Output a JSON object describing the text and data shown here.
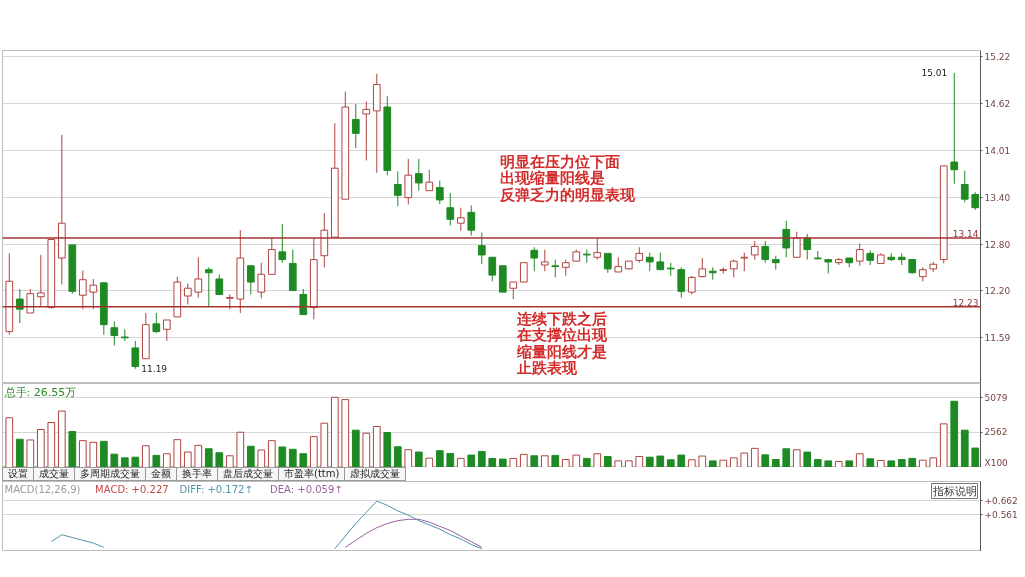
{
  "chart_data": [
    {
      "type": "candlestick",
      "categories": [
        null,
        null,
        null,
        null,
        null,
        null,
        null,
        null,
        null,
        null,
        null,
        null,
        null,
        null,
        null,
        null,
        null,
        null,
        null,
        null,
        null,
        null,
        null,
        null,
        null,
        null,
        null,
        null,
        null,
        null,
        null,
        null,
        null,
        null,
        null,
        null,
        null,
        null,
        null,
        null,
        null,
        null,
        null,
        null,
        null,
        null,
        null,
        null,
        null,
        null,
        null,
        null,
        null,
        null,
        null,
        null,
        null,
        null,
        null,
        null,
        null,
        null,
        null,
        null,
        null,
        null,
        null,
        null,
        null,
        null,
        null,
        null,
        null,
        null,
        null,
        null,
        null,
        null,
        null,
        null,
        null,
        null,
        null,
        null,
        null,
        null,
        null,
        null,
        null,
        null,
        null,
        null,
        null
      ],
      "ohlc": [
        [
          11.67,
          12.68,
          11.63,
          12.32
        ],
        [
          12.09,
          12.22,
          11.78,
          11.96
        ],
        [
          11.91,
          12.22,
          11.91,
          12.16
        ],
        [
          12.12,
          12.66,
          12.0,
          12.17
        ],
        [
          11.98,
          12.86,
          11.97,
          12.86
        ],
        [
          12.62,
          14.21,
          12.28,
          13.07
        ],
        [
          12.79,
          12.79,
          12.16,
          12.19
        ],
        [
          12.14,
          12.46,
          11.96,
          12.34
        ],
        [
          12.18,
          12.35,
          11.96,
          12.27
        ],
        [
          12.3,
          12.3,
          11.63,
          11.76
        ],
        [
          11.72,
          11.8,
          11.49,
          11.62
        ],
        [
          11.6,
          11.7,
          11.55,
          11.59
        ],
        [
          11.46,
          11.55,
          11.19,
          11.22
        ],
        [
          11.32,
          11.91,
          11.32,
          11.76
        ],
        [
          11.77,
          11.91,
          11.65,
          11.67
        ],
        [
          11.7,
          11.82,
          11.55,
          11.82
        ],
        [
          11.86,
          12.38,
          11.86,
          12.31
        ],
        [
          12.13,
          12.29,
          12.02,
          12.23
        ],
        [
          12.18,
          12.63,
          12.11,
          12.35
        ],
        [
          12.47,
          12.5,
          12.0,
          12.43
        ],
        [
          12.35,
          12.41,
          12.14,
          12.15
        ],
        [
          12.1,
          12.15,
          11.96,
          12.11
        ],
        [
          12.09,
          12.98,
          11.91,
          12.62
        ],
        [
          12.52,
          12.52,
          12.15,
          12.31
        ],
        [
          12.18,
          12.56,
          12.1,
          12.41
        ],
        [
          12.41,
          12.88,
          12.41,
          12.73
        ],
        [
          12.7,
          13.06,
          12.56,
          12.6
        ],
        [
          12.55,
          12.73,
          12.2,
          12.2
        ],
        [
          12.15,
          12.22,
          11.89,
          11.89
        ],
        [
          11.98,
          12.88,
          11.83,
          12.6
        ],
        [
          12.65,
          13.2,
          12.5,
          12.98
        ],
        [
          12.89,
          14.36,
          12.89,
          13.78
        ],
        [
          13.38,
          14.77,
          13.38,
          14.57
        ],
        [
          14.41,
          14.61,
          14.04,
          14.23
        ],
        [
          14.48,
          14.64,
          13.88,
          14.54
        ],
        [
          14.52,
          15.0,
          13.72,
          14.86
        ],
        [
          14.57,
          14.71,
          13.69,
          13.75
        ],
        [
          13.57,
          13.74,
          13.29,
          13.43
        ],
        [
          13.4,
          13.9,
          13.31,
          13.69
        ],
        [
          13.71,
          13.9,
          13.49,
          13.59
        ],
        [
          13.49,
          13.76,
          13.49,
          13.6
        ],
        [
          13.53,
          13.62,
          13.32,
          13.37
        ],
        [
          13.27,
          13.46,
          13.04,
          13.12
        ],
        [
          13.07,
          13.27,
          12.97,
          13.14
        ],
        [
          13.21,
          13.3,
          12.91,
          12.98
        ],
        [
          12.78,
          12.95,
          12.54,
          12.66
        ],
        [
          12.63,
          12.63,
          12.32,
          12.4
        ],
        [
          12.52,
          12.52,
          12.18,
          12.18
        ],
        [
          12.23,
          12.31,
          12.09,
          12.31
        ],
        [
          12.31,
          12.56,
          12.31,
          12.56
        ],
        [
          12.72,
          12.76,
          12.45,
          12.62
        ],
        [
          12.53,
          12.73,
          12.45,
          12.57
        ],
        [
          12.52,
          12.6,
          12.37,
          12.51
        ],
        [
          12.5,
          12.6,
          12.39,
          12.56
        ],
        [
          12.58,
          12.73,
          12.58,
          12.7
        ],
        [
          12.67,
          12.73,
          12.56,
          12.66
        ],
        [
          12.63,
          12.88,
          12.6,
          12.69
        ],
        [
          12.68,
          12.68,
          12.43,
          12.48
        ],
        [
          12.44,
          12.63,
          12.44,
          12.51
        ],
        [
          12.48,
          12.58,
          12.47,
          12.58
        ],
        [
          12.59,
          12.76,
          12.56,
          12.68
        ],
        [
          12.63,
          12.69,
          12.45,
          12.57
        ],
        [
          12.57,
          12.69,
          12.47,
          12.47
        ],
        [
          12.49,
          12.56,
          12.39,
          12.48
        ],
        [
          12.47,
          12.5,
          12.11,
          12.19
        ],
        [
          12.18,
          12.39,
          12.15,
          12.37
        ],
        [
          12.38,
          12.62,
          12.37,
          12.48
        ],
        [
          12.45,
          12.5,
          12.34,
          12.43
        ],
        [
          12.46,
          12.5,
          12.42,
          12.47
        ],
        [
          12.48,
          12.6,
          12.37,
          12.58
        ],
        [
          12.62,
          12.69,
          12.45,
          12.63
        ],
        [
          12.66,
          12.84,
          12.6,
          12.77
        ],
        [
          12.77,
          12.84,
          12.56,
          12.6
        ],
        [
          12.6,
          12.65,
          12.47,
          12.56
        ],
        [
          12.99,
          13.1,
          12.63,
          12.75
        ],
        [
          12.63,
          12.96,
          12.63,
          12.88
        ],
        [
          12.88,
          12.93,
          12.6,
          12.73
        ],
        [
          12.62,
          12.71,
          12.6,
          12.61
        ],
        [
          12.6,
          12.6,
          12.42,
          12.57
        ],
        [
          12.56,
          12.62,
          12.53,
          12.6
        ],
        [
          12.62,
          12.62,
          12.5,
          12.56
        ],
        [
          12.58,
          12.81,
          12.52,
          12.73
        ],
        [
          12.68,
          12.72,
          12.53,
          12.59
        ],
        [
          12.55,
          12.68,
          12.55,
          12.66
        ],
        [
          12.63,
          12.68,
          12.58,
          12.6
        ],
        [
          12.63,
          12.68,
          12.53,
          12.6
        ],
        [
          12.6,
          12.6,
          12.42,
          12.43
        ],
        [
          12.38,
          12.5,
          12.32,
          12.47
        ],
        [
          12.48,
          12.57,
          12.44,
          12.54
        ],
        [
          12.6,
          13.81,
          12.55,
          13.81
        ],
        [
          13.86,
          15.01,
          13.58,
          13.76
        ],
        [
          13.57,
          13.75,
          13.34,
          13.38
        ],
        [
          13.44,
          13.47,
          13.24,
          13.27
        ]
      ],
      "colors": [
        "#b0443f",
        "#1f8a24",
        "#b0443f",
        "#b0443f",
        "#b0443f",
        "#b0443f",
        "#1f8a24",
        "#b0443f",
        "#b0443f",
        "#1f8a24",
        "#1f8a24",
        "#1f8a24",
        "#1f8a24",
        "#b0443f",
        "#1f8a24",
        "#b0443f",
        "#b0443f",
        "#b0443f",
        "#b0443f",
        "#1f8a24",
        "#1f8a24",
        "#b0443f",
        "#b0443f",
        "#1f8a24",
        "#b0443f",
        "#b0443f",
        "#1f8a24",
        "#1f8a24",
        "#1f8a24",
        "#b0443f",
        "#b0443f",
        "#b0443f",
        "#b0443f",
        "#1f8a24",
        "#b0443f",
        "#b0443f",
        "#1f8a24",
        "#1f8a24",
        "#b0443f",
        "#1f8a24",
        "#b0443f",
        "#1f8a24",
        "#1f8a24",
        "#b0443f",
        "#1f8a24",
        "#1f8a24",
        "#1f8a24",
        "#1f8a24",
        "#b0443f",
        "#b0443f",
        "#1f8a24",
        "#b0443f",
        "#1f8a24",
        "#b0443f",
        "#b0443f",
        "#1f8a24",
        "#b0443f",
        "#1f8a24",
        "#b0443f",
        "#b0443f",
        "#b0443f",
        "#1f8a24",
        "#1f8a24",
        "#1f8a24",
        "#1f8a24",
        "#b0443f",
        "#b0443f",
        "#1f8a24",
        "#b0443f",
        "#b0443f",
        "#b0443f",
        "#b0443f",
        "#1f8a24",
        "#1f8a24",
        "#1f8a24",
        "#b0443f",
        "#1f8a24",
        "#1f8a24",
        "#1f8a24",
        "#b0443f",
        "#1f8a24",
        "#b0443f",
        "#1f8a24",
        "#b0443f",
        "#1f8a24",
        "#1f8a24",
        "#1f8a24",
        "#b0443f",
        "#b0443f",
        "#b0443f",
        "#1f8a24",
        "#1f8a24",
        "#1f8a24"
      ],
      "ylim": [
        11.0,
        15.3
      ],
      "yticks": [
        11.59,
        {
          "value": 12.2,
          "label": "12.20"
        },
        {
          "value": 12.8,
          "label": "12.80"
        },
        {
          "value": 13.4,
          "label": "13.40"
        },
        14.01,
        14.62,
        15.22
      ],
      "tick_labels": "y",
      "grid": "y",
      "ref_lines": [
        {
          "axis": "y",
          "value": 12.88,
          "color": "#a83232"
        },
        {
          "axis": "y",
          "value": 11.99,
          "color": "#a83232"
        }
      ],
      "annotations": [
        "15.01",
        "11.19",
        "明显在压力位下面出现缩量阳线是反弹乏力的明显表现",
        "连续下跌之后在支撑位出现缩量阳线才是止跌表现",
        "13.14",
        "12.23"
      ]
    },
    {
      "type": "bar",
      "categories": [
        null,
        null,
        null,
        null,
        null,
        null,
        null,
        null,
        null,
        null,
        null,
        null,
        null,
        null,
        null,
        null,
        null,
        null,
        null,
        null,
        null,
        null,
        null,
        null,
        null,
        null,
        null,
        null,
        null,
        null,
        null,
        null,
        null,
        null,
        null,
        null,
        null,
        null,
        null,
        null,
        null,
        null,
        null,
        null,
        null,
        null,
        null,
        null,
        null,
        null,
        null,
        null,
        null,
        null,
        null,
        null,
        null,
        null,
        null,
        null,
        null,
        null,
        null,
        null,
        null,
        null,
        null,
        null,
        null,
        null,
        null,
        null,
        null,
        null,
        null,
        null,
        null,
        null,
        null,
        null,
        null,
        null,
        null,
        null,
        null,
        null,
        null,
        null,
        null,
        null,
        null,
        null,
        null
      ],
      "values": [
        3610,
        2050,
        2000,
        2760,
        3270,
        4100,
        2610,
        1950,
        1830,
        1900,
        970,
        700,
        750,
        1580,
        880,
        1000,
        2020,
        1120,
        1610,
        1360,
        1070,
        850,
        2560,
        1540,
        1270,
        1950,
        1490,
        1320,
        1000,
        2240,
        3220,
        5100,
        4930,
        2710,
        2490,
        2980,
        2540,
        1510,
        1290,
        1120,
        680,
        1220,
        1020,
        660,
        900,
        1170,
        660,
        610,
        660,
        950,
        850,
        850,
        880,
        580,
        900,
        660,
        1000,
        800,
        480,
        480,
        800,
        750,
        830,
        560,
        900,
        560,
        830,
        480,
        530,
        700,
        1050,
        1390,
        920,
        580,
        1360,
        1290,
        1120,
        580,
        480,
        440,
        480,
        1000,
        630,
        510,
        480,
        580,
        660,
        530,
        700,
        3170,
        4810,
        2710,
        1410
      ],
      "colors": [
        "#b0443f",
        "#1f8a24",
        "#b0443f",
        "#b0443f",
        "#b0443f",
        "#b0443f",
        "#1f8a24",
        "#b0443f",
        "#b0443f",
        "#1f8a24",
        "#1f8a24",
        "#1f8a24",
        "#1f8a24",
        "#b0443f",
        "#1f8a24",
        "#b0443f",
        "#b0443f",
        "#b0443f",
        "#b0443f",
        "#1f8a24",
        "#1f8a24",
        "#b0443f",
        "#b0443f",
        "#1f8a24",
        "#b0443f",
        "#b0443f",
        "#1f8a24",
        "#1f8a24",
        "#1f8a24",
        "#b0443f",
        "#b0443f",
        "#b0443f",
        "#b0443f",
        "#1f8a24",
        "#b0443f",
        "#b0443f",
        "#1f8a24",
        "#1f8a24",
        "#b0443f",
        "#1f8a24",
        "#b0443f",
        "#1f8a24",
        "#1f8a24",
        "#b0443f",
        "#1f8a24",
        "#1f8a24",
        "#1f8a24",
        "#1f8a24",
        "#b0443f",
        "#b0443f",
        "#1f8a24",
        "#b0443f",
        "#1f8a24",
        "#b0443f",
        "#b0443f",
        "#1f8a24",
        "#b0443f",
        "#1f8a24",
        "#b0443f",
        "#b0443f",
        "#b0443f",
        "#1f8a24",
        "#1f8a24",
        "#1f8a24",
        "#1f8a24",
        "#b0443f",
        "#b0443f",
        "#1f8a24",
        "#b0443f",
        "#b0443f",
        "#b0443f",
        "#b0443f",
        "#1f8a24",
        "#1f8a24",
        "#1f8a24",
        "#b0443f",
        "#1f8a24",
        "#1f8a24",
        "#1f8a24",
        "#b0443f",
        "#1f8a24",
        "#b0443f",
        "#1f8a24",
        "#b0443f",
        "#1f8a24",
        "#1f8a24",
        "#1f8a24",
        "#b0443f",
        "#b0443f",
        "#b0443f",
        "#1f8a24",
        "#1f8a24",
        "#1f8a24"
      ],
      "ylim": [
        0,
        6100
      ],
      "yticks": [
        {
          "value": 0,
          "label": "X100"
        },
        2562,
        5079
      ],
      "tick_labels": "y",
      "grid": "y",
      "annotations": [
        "总手: 26.55万",
        "设置",
        "成交量",
        "多周期成交量",
        "金额",
        "换手率",
        "盘后成交量",
        "市盈率(ttm)",
        "虚拟成交量"
      ]
    },
    {
      "type": "line",
      "categories": [
        null,
        null,
        null,
        null,
        null,
        null,
        null,
        null,
        null,
        null,
        null,
        null,
        null,
        null,
        null,
        null,
        null,
        null,
        null,
        null,
        null,
        null,
        null,
        null,
        null,
        null,
        null,
        null,
        null,
        null,
        null,
        null,
        null,
        null,
        null,
        null,
        null,
        null,
        null,
        null,
        null,
        null,
        null,
        null,
        null,
        null,
        null,
        null,
        null,
        null,
        null,
        null,
        null,
        null,
        null,
        null,
        null,
        null,
        null,
        null,
        null,
        null,
        null,
        null,
        null,
        null,
        null,
        null,
        null,
        null,
        null,
        null,
        null,
        null,
        null,
        null,
        null,
        null,
        null,
        null,
        null,
        null,
        null,
        null,
        null,
        null,
        null,
        null,
        null,
        null,
        null,
        null,
        null
      ],
      "series": [
        {
          "name": "DIFF: +0.172↑",
          "color": "#4f93a8",
          "values": [
            null,
            null,
            null,
            null,
            0.37,
            0.42,
            0.4,
            0.38,
            0.36,
            0.33,
            null,
            null,
            null,
            null,
            null,
            null,
            null,
            null,
            null,
            null,
            null,
            null,
            null,
            null,
            null,
            null,
            null,
            null,
            null,
            null,
            null,
            0.32,
            0.41,
            0.5,
            0.58,
            0.66,
            0.63,
            0.59,
            0.56,
            0.52,
            0.49,
            0.46,
            0.42,
            0.39,
            0.35,
            0.32,
            null,
            null,
            null,
            null,
            null,
            null,
            null,
            null,
            null,
            null,
            null,
            null,
            null,
            null,
            null,
            null,
            null,
            null,
            null,
            null,
            null,
            null,
            null,
            null,
            null,
            null,
            null,
            null,
            null,
            null,
            null,
            null,
            null,
            null,
            null,
            null,
            null,
            null,
            null,
            null,
            null,
            null,
            null,
            null,
            null,
            null,
            null
          ]
        },
        {
          "name": "DEA: +0.059↑",
          "color": "#9a5f9e",
          "values": [
            null,
            null,
            null,
            null,
            null,
            null,
            null,
            null,
            null,
            null,
            null,
            null,
            null,
            null,
            null,
            null,
            null,
            null,
            null,
            null,
            null,
            null,
            null,
            null,
            null,
            null,
            null,
            null,
            null,
            null,
            null,
            null,
            0.33,
            0.38,
            0.43,
            0.47,
            0.5,
            0.52,
            0.53,
            0.53,
            0.51,
            0.48,
            0.45,
            0.41,
            0.37,
            0.33,
            null,
            null,
            null,
            null,
            null,
            null,
            null,
            null,
            null,
            null,
            null,
            null,
            null,
            null,
            null,
            null,
            null,
            null,
            null,
            null,
            null,
            null,
            null,
            null,
            null,
            null,
            null,
            null,
            null,
            null,
            null,
            null,
            null,
            null,
            null,
            null,
            null,
            null,
            null,
            null,
            null,
            null,
            null,
            null,
            null,
            null,
            null
          ]
        }
      ],
      "ylim": [
        0.3,
        0.8
      ],
      "yticks": [
        {
          "value": 0.662,
          "label": "+0.662"
        },
        {
          "value": 0.561,
          "label": "+0.561"
        }
      ],
      "tick_labels": "y",
      "grid": "y",
      "annotations": [
        "MACD(12,26,9)",
        "MACD: +0.227",
        "指标说明"
      ]
    }
  ]
}
